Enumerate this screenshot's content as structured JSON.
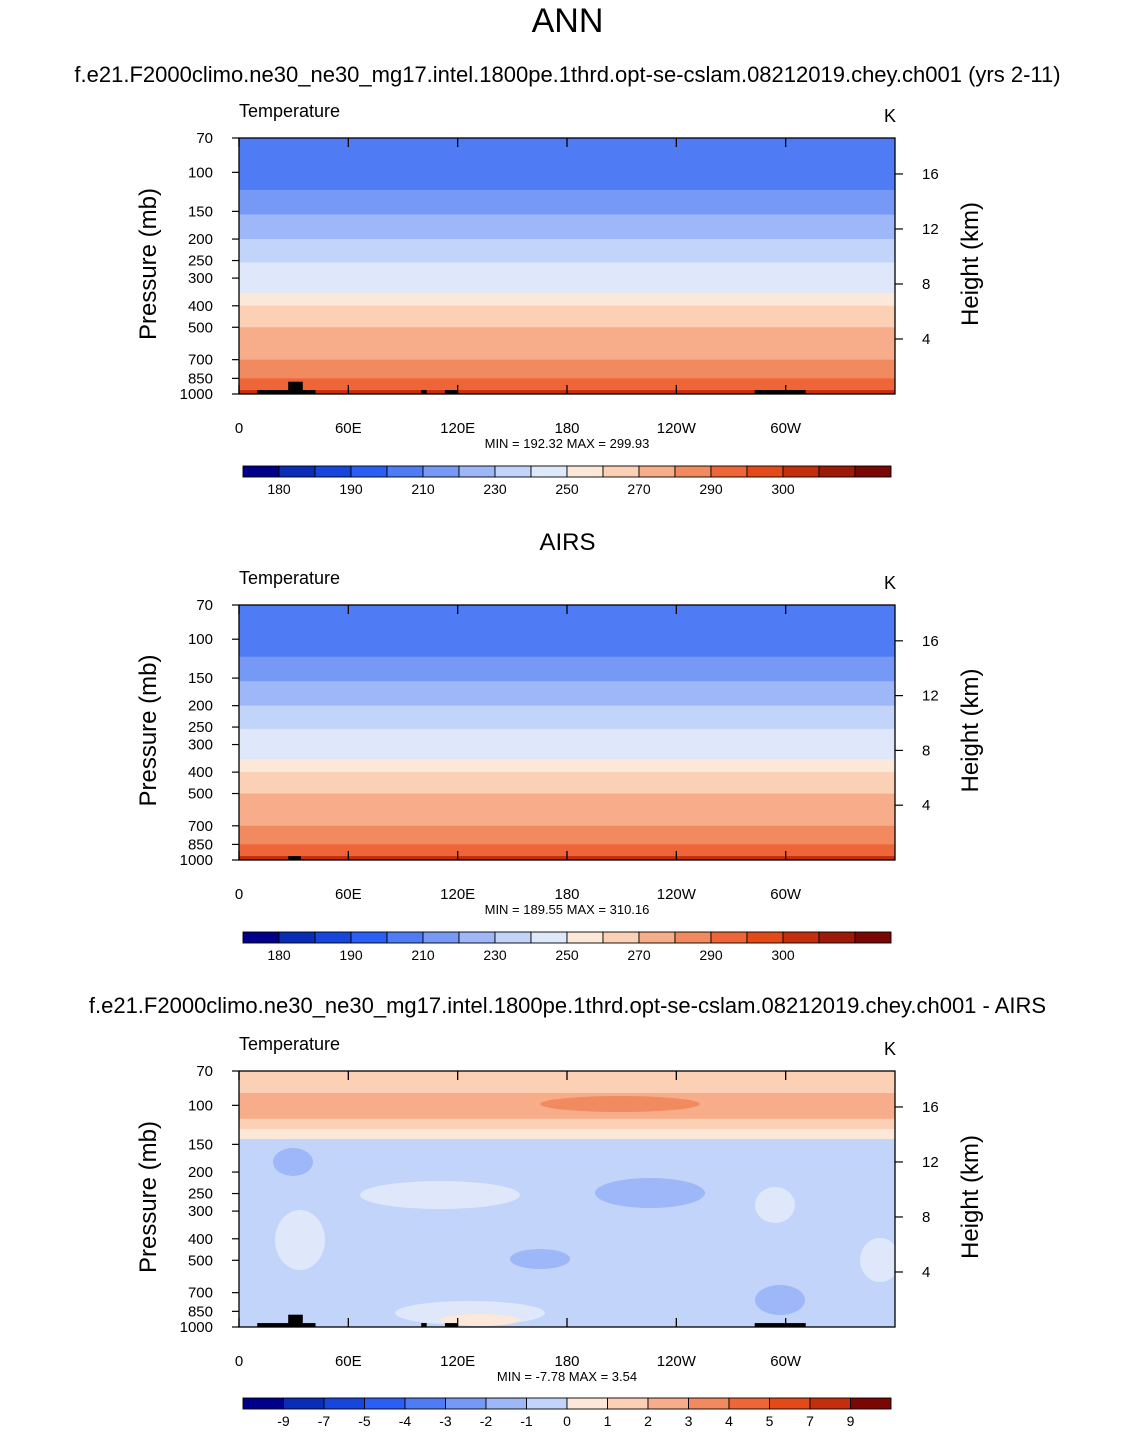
{
  "figure": {
    "title": "ANN"
  },
  "chart_data": [
    {
      "type": "heatmap",
      "title": "f.e21.F2000climo.ne30_ne30_mg17.intel.1800pe.1thrd.opt-se-cslam.08212019.chey.ch001 (yrs 2-11)",
      "left_label": "Temperature",
      "units": "K",
      "ylabel": "Pressure (mb)",
      "y2label": "Height (km)",
      "yscale": "log",
      "x_ticks": [
        "0",
        "60E",
        "120E",
        "180",
        "120W",
        "60W"
      ],
      "x_tick_lon": [
        0,
        60,
        120,
        180,
        240,
        300
      ],
      "xlim": [
        0,
        360
      ],
      "y_ticks": [
        70,
        100,
        150,
        200,
        250,
        300,
        400,
        500,
        700,
        850,
        1000
      ],
      "ylim": [
        70,
        1000
      ],
      "height_ticks": [
        4,
        8,
        12,
        16
      ],
      "min_text": "MIN = 192.32  MAX = 299.93",
      "colorbar": {
        "labels": [
          "180",
          "190",
          "210",
          "230",
          "250",
          "270",
          "290",
          "300"
        ],
        "colors": [
          "#00008B",
          "#0A2DB8",
          "#1746DC",
          "#2A5EF5",
          "#4F7CF5",
          "#7599F5",
          "#9DB7F8",
          "#C2D4FA",
          "#DEE8FA",
          "#FCE8D8",
          "#FBD0B5",
          "#F7AD8A",
          "#F28A60",
          "#EE6637",
          "#E44A17",
          "#C42E0D",
          "#9E1A08",
          "#7A0704"
        ]
      },
      "profile": [
        {
          "p": 70,
          "v": 199
        },
        {
          "p": 120,
          "v": 205
        },
        {
          "p": 155,
          "v": 212
        },
        {
          "p": 200,
          "v": 220
        },
        {
          "p": 255,
          "v": 232
        },
        {
          "p": 300,
          "v": 239
        },
        {
          "p": 350,
          "v": 246
        },
        {
          "p": 400,
          "v": 252
        },
        {
          "p": 500,
          "v": 260
        },
        {
          "p": 700,
          "v": 273
        },
        {
          "p": 850,
          "v": 282
        },
        {
          "p": 1000,
          "v": 288
        }
      ],
      "terrain": [
        {
          "lon": [
            10,
            42
          ],
          "p_top": 960
        },
        {
          "lon": [
            27,
            35
          ],
          "p_top": 880
        },
        {
          "lon": [
            100,
            103
          ],
          "p_top": 960
        },
        {
          "lon": [
            113,
            120
          ],
          "p_top": 960
        },
        {
          "lon": [
            283,
            311
          ],
          "p_top": 960
        }
      ]
    },
    {
      "type": "heatmap",
      "title": "AIRS",
      "left_label": "Temperature",
      "units": "K",
      "ylabel": "Pressure (mb)",
      "y2label": "Height (km)",
      "yscale": "log",
      "x_ticks": [
        "0",
        "60E",
        "120E",
        "180",
        "120W",
        "60W"
      ],
      "x_tick_lon": [
        0,
        60,
        120,
        180,
        240,
        300
      ],
      "xlim": [
        0,
        360
      ],
      "y_ticks": [
        70,
        100,
        150,
        200,
        250,
        300,
        400,
        500,
        700,
        850,
        1000
      ],
      "ylim": [
        70,
        1000
      ],
      "height_ticks": [
        4,
        8,
        12,
        16
      ],
      "min_text": "MIN = 189.55  MAX = 310.16",
      "colorbar": {
        "labels": [
          "180",
          "190",
          "210",
          "230",
          "250",
          "270",
          "290",
          "300"
        ],
        "colors": [
          "#00008B",
          "#0A2DB8",
          "#1746DC",
          "#2A5EF5",
          "#4F7CF5",
          "#7599F5",
          "#9DB7F8",
          "#C2D4FA",
          "#DEE8FA",
          "#FCE8D8",
          "#FBD0B5",
          "#F7AD8A",
          "#F28A60",
          "#EE6637",
          "#E44A17",
          "#C42E0D",
          "#9E1A08",
          "#7A0704"
        ]
      },
      "profile": [
        {
          "p": 70,
          "v": 199
        },
        {
          "p": 120,
          "v": 205
        },
        {
          "p": 155,
          "v": 212
        },
        {
          "p": 200,
          "v": 220
        },
        {
          "p": 255,
          "v": 232
        },
        {
          "p": 300,
          "v": 239
        },
        {
          "p": 350,
          "v": 246
        },
        {
          "p": 400,
          "v": 252
        },
        {
          "p": 500,
          "v": 260
        },
        {
          "p": 700,
          "v": 273
        },
        {
          "p": 850,
          "v": 282
        },
        {
          "p": 1000,
          "v": 290
        }
      ],
      "terrain": [
        {
          "lon": [
            27,
            34
          ],
          "p_top": 960
        }
      ]
    },
    {
      "type": "heatmap",
      "title": "f.e21.F2000climo.ne30_ne30_mg17.intel.1800pe.1thrd.opt-se-cslam.08212019.chey.ch001 - AIRS",
      "left_label": "Temperature",
      "units": "K",
      "ylabel": "Pressure (mb)",
      "y2label": "Height (km)",
      "yscale": "log",
      "x_ticks": [
        "0",
        "60E",
        "120E",
        "180",
        "120W",
        "60W"
      ],
      "x_tick_lon": [
        0,
        60,
        120,
        180,
        240,
        300
      ],
      "xlim": [
        0,
        360
      ],
      "y_ticks": [
        70,
        100,
        150,
        200,
        250,
        300,
        400,
        500,
        700,
        850,
        1000
      ],
      "ylim": [
        70,
        1000
      ],
      "height_ticks": [
        4,
        8,
        12,
        16
      ],
      "min_text": "MIN =  -7.78  MAX =   3.54",
      "colorbar": {
        "labels": [
          "-9",
          "-7",
          "-5",
          "-4",
          "-3",
          "-2",
          "-1",
          "0",
          "1",
          "2",
          "3",
          "4",
          "5",
          "7",
          "9"
        ],
        "colors": [
          "#00008B",
          "#0A2DB8",
          "#1746DC",
          "#2A5EF5",
          "#4F7CF5",
          "#7599F5",
          "#9DB7F8",
          "#C2D4FA",
          "#FCE8D8",
          "#FBD0B5",
          "#F7AD8A",
          "#F28A60",
          "#EE6637",
          "#E44A17",
          "#C42E0D",
          "#7A0704"
        ]
      },
      "bands": [
        {
          "p": [
            70,
            88
          ],
          "color": "#FBD0B5"
        },
        {
          "p": [
            88,
            115
          ],
          "color": "#F7AD8A"
        },
        {
          "p": [
            115,
            128
          ],
          "color": "#FBD0B5"
        },
        {
          "p": [
            128,
            142
          ],
          "color": "#FCE8D8"
        },
        {
          "p": [
            142,
            1000
          ],
          "color": "#C2D4FA"
        }
      ],
      "terrain": [
        {
          "lon": [
            10,
            42
          ],
          "p_top": 960
        },
        {
          "lon": [
            27,
            35
          ],
          "p_top": 880
        },
        {
          "lon": [
            100,
            103
          ],
          "p_top": 960
        },
        {
          "lon": [
            113,
            120
          ],
          "p_top": 960
        },
        {
          "lon": [
            283,
            311
          ],
          "p_top": 960
        }
      ]
    }
  ]
}
